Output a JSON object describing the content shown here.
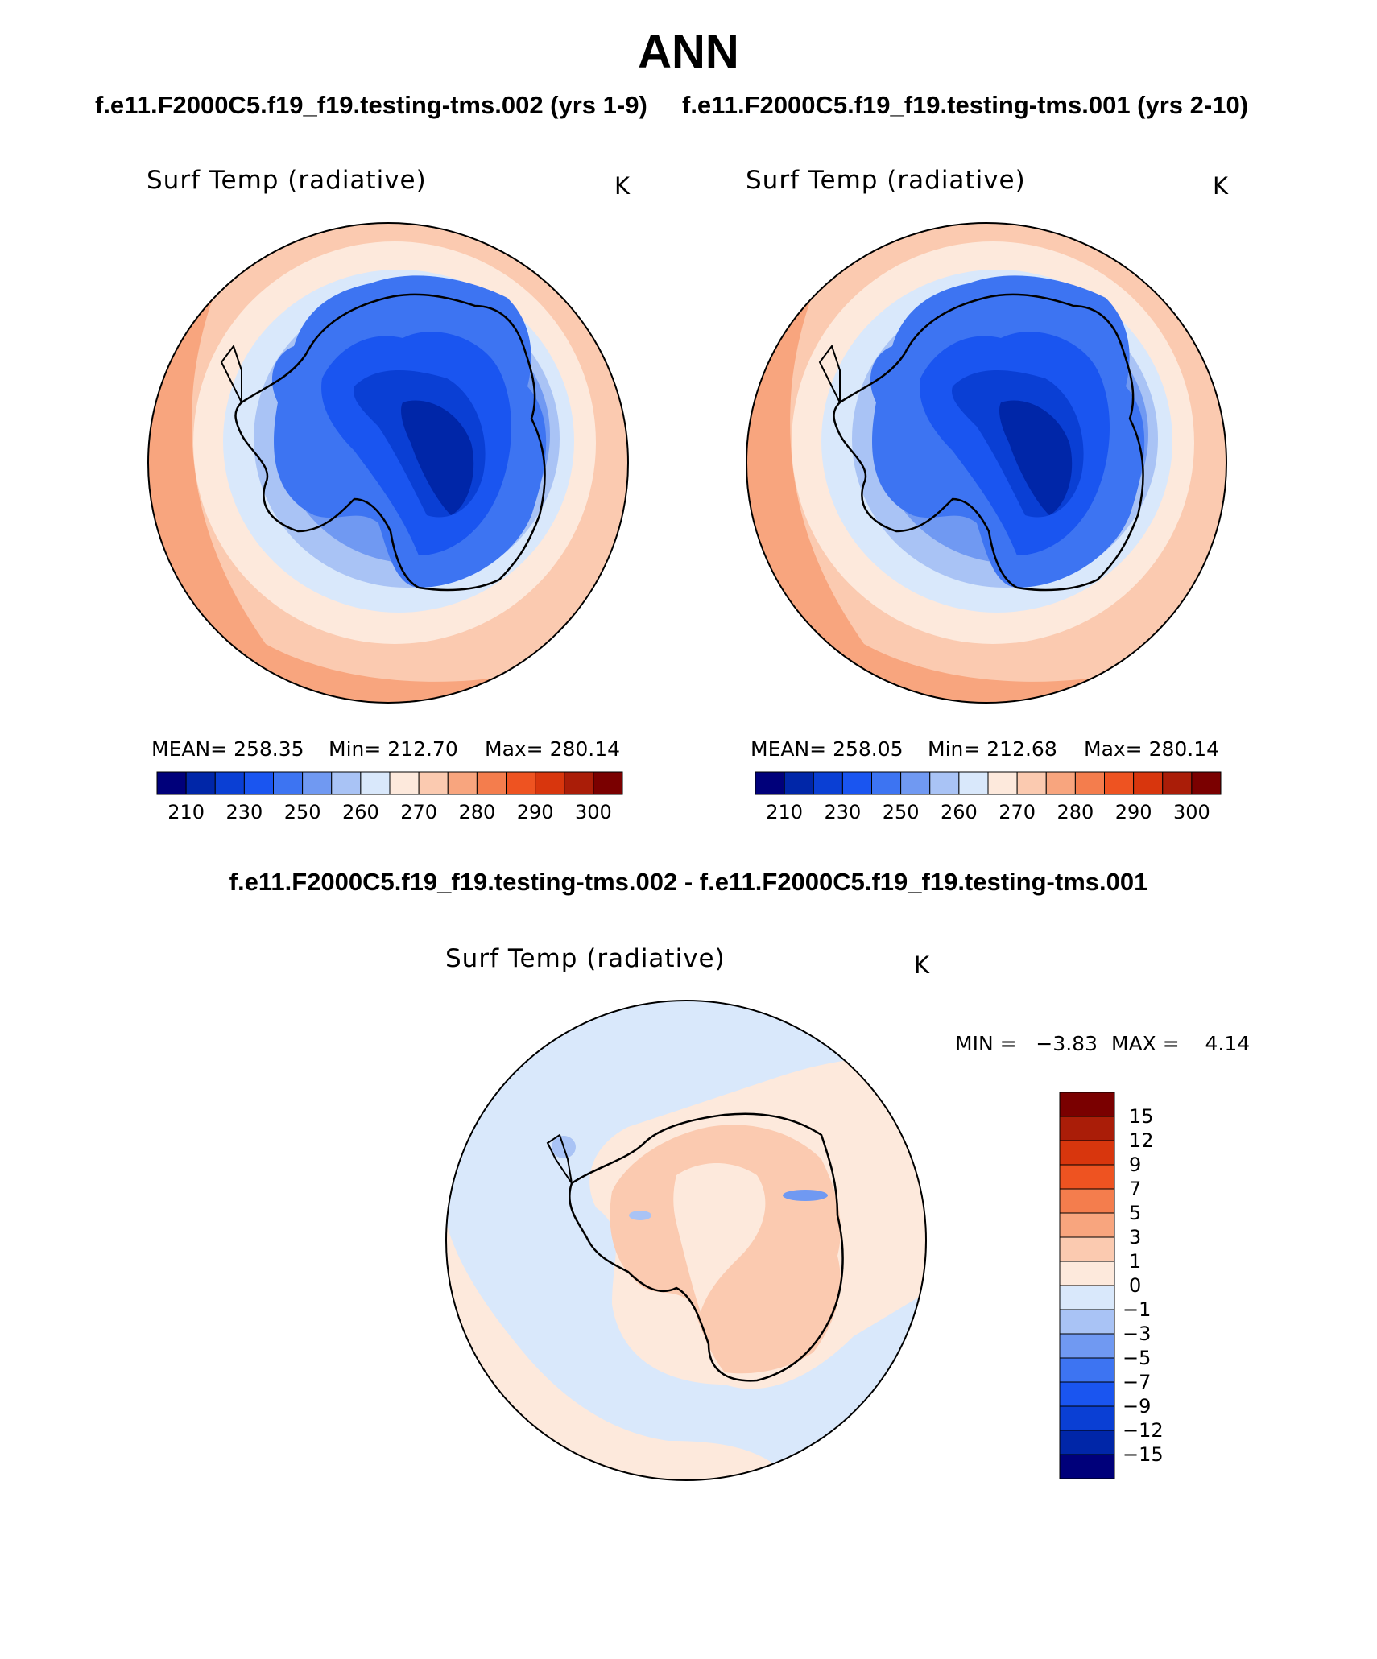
{
  "header": {
    "title": "ANN",
    "left_case": "f.e11.F2000C5.f19_f19.testing-tms.002 (yrs 1-9)",
    "right_case": "f.e11.F2000C5.f19_f19.testing-tms.001 (yrs 2-10)",
    "diff_title": "f.e11.F2000C5.f19_f19.testing-tms.002 - f.e11.F2000C5.f19_f19.testing-tms.001"
  },
  "chart_data": [
    {
      "type": "heatmap",
      "projection": "south-polar-stereographic",
      "title": "Surf Temp (radiative)",
      "units": "K",
      "stats": {
        "mean": "MEAN= 258.35",
        "min": "Min= 212.70",
        "max": "Max= 280.14"
      },
      "colorbar": {
        "orientation": "horizontal",
        "tick_labels": [
          "210",
          "230",
          "250",
          "260",
          "270",
          "280",
          "290",
          "300"
        ],
        "colors": [
          "#00007a",
          "#0026a8",
          "#0a3fd4",
          "#1a55f0",
          "#3d74f2",
          "#7099f2",
          "#a9c3f5",
          "#d9e8fb",
          "#fde9dc",
          "#fbcab0",
          "#f8a57e",
          "#f47d4d",
          "#ee5321",
          "#d8360d",
          "#aa1d08",
          "#7a0000"
        ]
      }
    },
    {
      "type": "heatmap",
      "projection": "south-polar-stereographic",
      "title": "Surf Temp (radiative)",
      "units": "K",
      "stats": {
        "mean": "MEAN= 258.05",
        "min": "Min= 212.68",
        "max": "Max= 280.14"
      },
      "colorbar": {
        "orientation": "horizontal",
        "tick_labels": [
          "210",
          "230",
          "250",
          "260",
          "270",
          "280",
          "290",
          "300"
        ],
        "colors": [
          "#00007a",
          "#0026a8",
          "#0a3fd4",
          "#1a55f0",
          "#3d74f2",
          "#7099f2",
          "#a9c3f5",
          "#d9e8fb",
          "#fde9dc",
          "#fbcab0",
          "#f8a57e",
          "#f47d4d",
          "#ee5321",
          "#d8360d",
          "#aa1d08",
          "#7a0000"
        ]
      }
    },
    {
      "type": "heatmap",
      "projection": "south-polar-stereographic",
      "title": "Surf Temp (radiative)",
      "units": "K",
      "stats": {
        "min": "MIN =   −3.83",
        "max": "MAX =    4.14"
      },
      "colorbar": {
        "orientation": "vertical",
        "tick_labels": [
          "15",
          "12",
          "9",
          "7",
          "5",
          "3",
          "1",
          "0",
          "−1",
          "−3",
          "−5",
          "−7",
          "−9",
          "−12",
          "−15"
        ],
        "colors": [
          "#7a0000",
          "#aa1d08",
          "#d8360d",
          "#ee5321",
          "#f47d4d",
          "#f8a57e",
          "#fbcab0",
          "#fde9dc",
          "#d9e8fb",
          "#a9c3f5",
          "#7099f2",
          "#3d74f2",
          "#1a55f0",
          "#0a3fd4",
          "#0026a8",
          "#00007a"
        ]
      }
    }
  ]
}
